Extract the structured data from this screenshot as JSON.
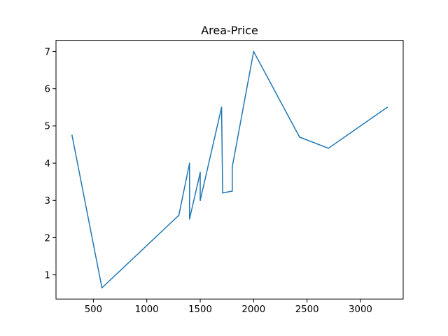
{
  "chart_data": {
    "type": "line",
    "title": "Area-Price",
    "xlabel": "",
    "ylabel": "",
    "xlim": [
      150,
      3400
    ],
    "ylim": [
      0.35,
      7.3
    ],
    "x_ticks": [
      500,
      1000,
      1500,
      2000,
      2500,
      3000
    ],
    "y_ticks": [
      1,
      2,
      3,
      4,
      5,
      6,
      7
    ],
    "grid": false,
    "series": [
      {
        "color": "#1f77b4",
        "x": [
          300,
          580,
          1300,
          1400,
          1400,
          1500,
          1500,
          1700,
          1710,
          1800,
          1800,
          2000,
          2430,
          2700,
          3250
        ],
        "y": [
          4.75,
          0.65,
          2.6,
          4.0,
          2.5,
          3.75,
          3.0,
          5.5,
          3.2,
          3.25,
          3.9,
          7.0,
          4.7,
          4.4,
          5.5
        ]
      }
    ]
  }
}
